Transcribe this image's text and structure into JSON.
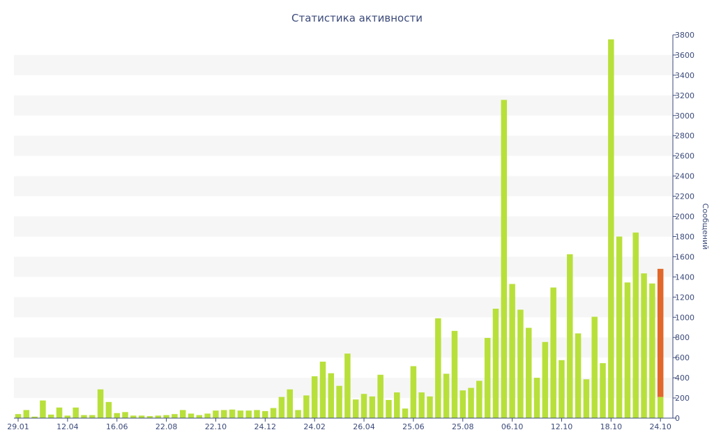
{
  "chart_data": {
    "type": "bar",
    "title": "Статистика активности",
    "ylabel": "Сообщений",
    "xlabel": "",
    "ylim": [
      0,
      3800
    ],
    "yticks": [
      0,
      200,
      400,
      600,
      800,
      1000,
      1200,
      1400,
      1600,
      1800,
      2000,
      2200,
      2400,
      2600,
      2800,
      3000,
      3200,
      3400,
      3600,
      3800
    ],
    "y_axis_side": "right",
    "grid": "alternating horizontal bands",
    "xtick_labels": [
      {
        "label": "29.01",
        "index": 0
      },
      {
        "label": "12.04",
        "index": 6
      },
      {
        "label": "16.06",
        "index": 12
      },
      {
        "label": "22.08",
        "index": 18
      },
      {
        "label": "22.10",
        "index": 24
      },
      {
        "label": "24.12",
        "index": 30
      },
      {
        "label": "24.02",
        "index": 36
      },
      {
        "label": "26.04",
        "index": 42
      },
      {
        "label": "25.06",
        "index": 48
      },
      {
        "label": "25.08",
        "index": 54
      },
      {
        "label": "06.10",
        "index": 60
      },
      {
        "label": "12.10",
        "index": 66
      },
      {
        "label": "18.10",
        "index": 72
      },
      {
        "label": "24.10",
        "index": 78
      }
    ],
    "series": [
      {
        "name": "",
        "color": "#b8e03a",
        "values": [
          40,
          80,
          15,
          175,
          35,
          105,
          25,
          105,
          30,
          30,
          285,
          160,
          50,
          60,
          25,
          25,
          20,
          25,
          30,
          40,
          80,
          45,
          30,
          45,
          75,
          80,
          85,
          75,
          75,
          80,
          70,
          100,
          210,
          285,
          80,
          225,
          415,
          560,
          445,
          320,
          640,
          185,
          240,
          215,
          430,
          180,
          255,
          95,
          515,
          255,
          215,
          990,
          440,
          865,
          275,
          300,
          370,
          795,
          1085,
          3155,
          1330,
          1075,
          895,
          400,
          755,
          1295,
          575,
          1625,
          840,
          385,
          1005,
          545,
          3755,
          1800,
          1345,
          1840,
          1435,
          1335,
          210
        ]
      },
      {
        "name": "",
        "color": "#e0682b",
        "values": [
          0,
          0,
          0,
          0,
          0,
          0,
          0,
          0,
          0,
          0,
          0,
          0,
          0,
          0,
          0,
          0,
          0,
          0,
          0,
          0,
          0,
          0,
          0,
          0,
          0,
          0,
          0,
          0,
          0,
          0,
          0,
          0,
          0,
          0,
          0,
          0,
          0,
          0,
          0,
          0,
          0,
          0,
          0,
          0,
          0,
          0,
          0,
          0,
          0,
          0,
          0,
          0,
          0,
          0,
          0,
          0,
          0,
          0,
          0,
          0,
          0,
          0,
          0,
          0,
          0,
          0,
          0,
          0,
          0,
          0,
          0,
          0,
          0,
          0,
          0,
          0,
          0,
          0,
          1270
        ]
      }
    ]
  }
}
